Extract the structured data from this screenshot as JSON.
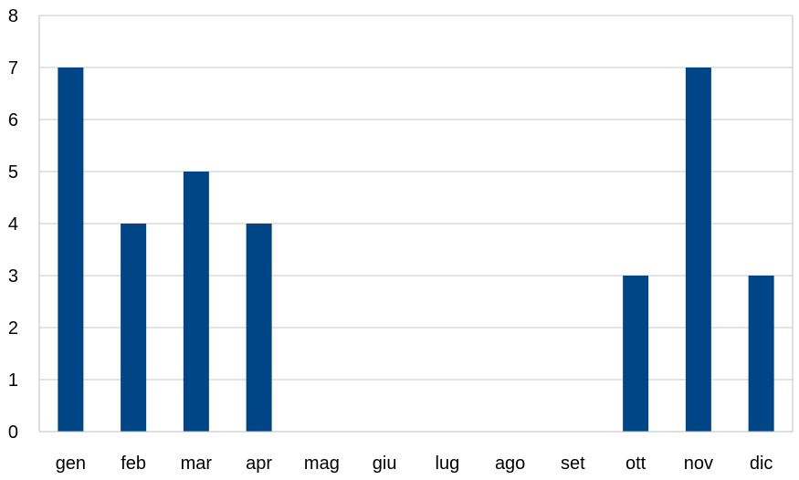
{
  "chart_data": {
    "type": "bar",
    "categories": [
      "gen",
      "feb",
      "mar",
      "apr",
      "mag",
      "giu",
      "lug",
      "ago",
      "set",
      "ott",
      "nov",
      "dic"
    ],
    "series": [
      {
        "values": [
          7,
          4,
          5,
          4,
          0,
          0,
          0,
          0,
          0,
          3,
          7,
          3
        ]
      }
    ],
    "yticks": [
      "0",
      "1",
      "2",
      "3",
      "4",
      "5",
      "6",
      "7",
      "8"
    ],
    "ylim": [
      0,
      8
    ],
    "grid": true,
    "legend": "none",
    "bar_color": "#004586",
    "grid_color": "#c8c8c8"
  }
}
